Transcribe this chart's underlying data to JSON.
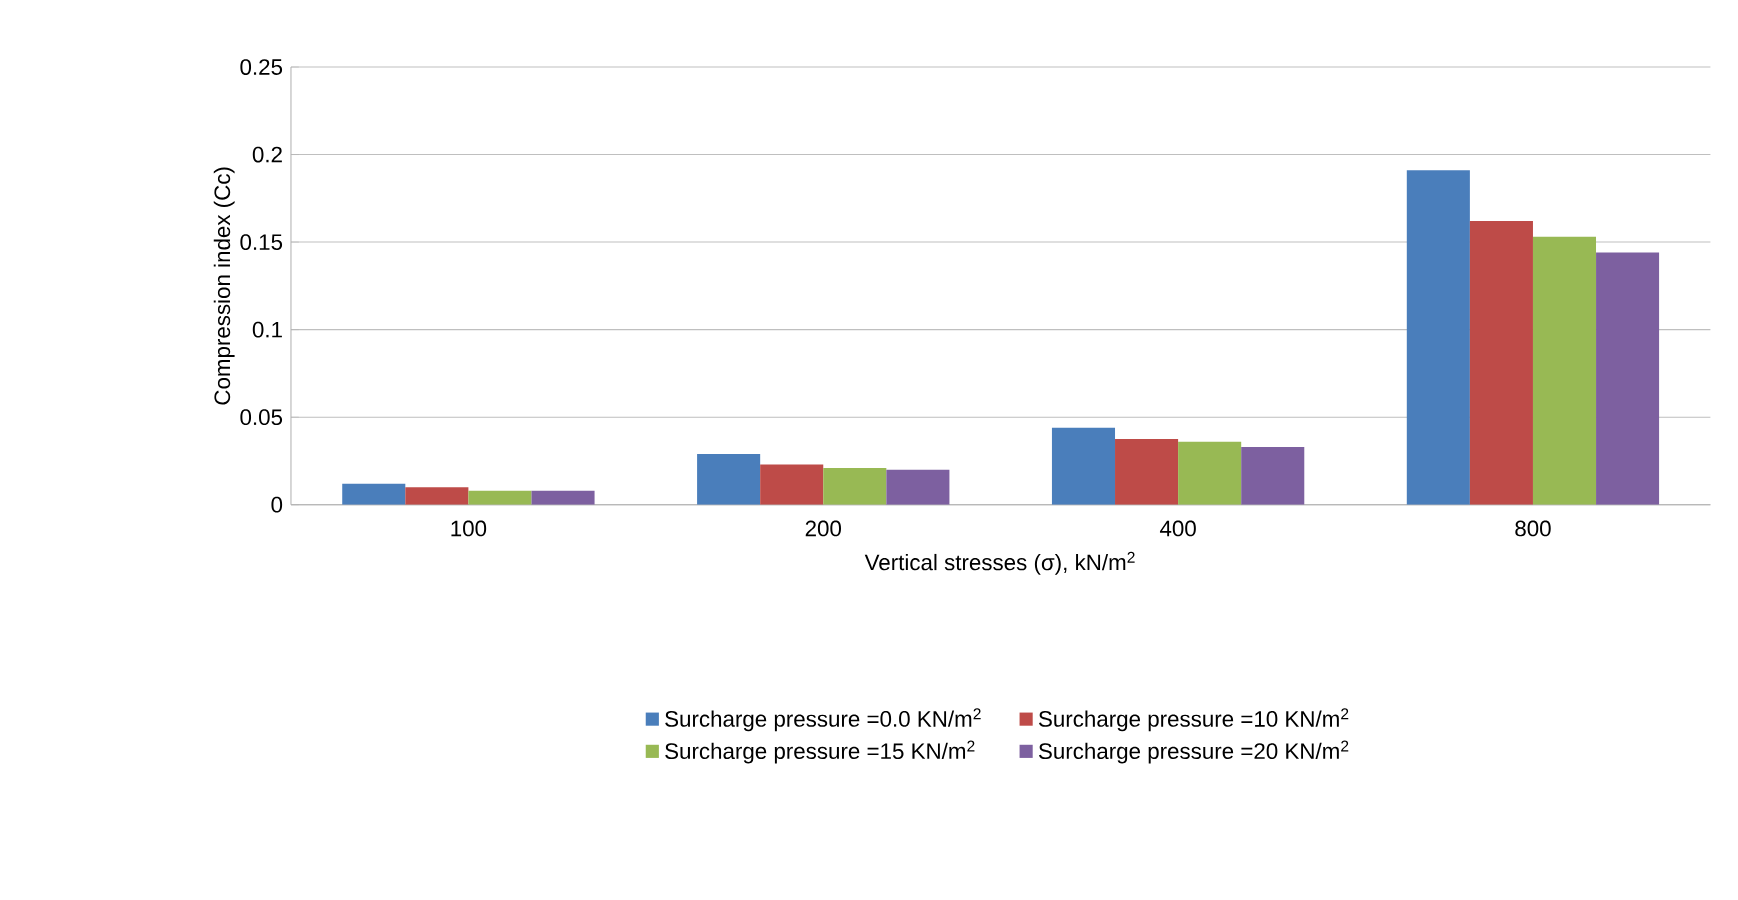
{
  "chart_data": {
    "type": "bar",
    "xlabel": "Vertical stresses (σ), kN/m$^{2}$",
    "ylabel": "Compression index (Cc)",
    "categories": [
      "100",
      "200",
      "400",
      "800"
    ],
    "series": [
      {
        "name": "Surcharge pressure =0.0 KN/m$^{2}$",
        "color": "#4a7ebb",
        "values": [
          0.012,
          0.029,
          0.044,
          0.191
        ]
      },
      {
        "name": "Surcharge pressure =10 KN/m$^{2}$",
        "color": "#be4b48",
        "values": [
          0.01,
          0.023,
          0.0375,
          0.162
        ]
      },
      {
        "name": "Surcharge pressure =15 KN/m$^{2}$",
        "color": "#98b954",
        "values": [
          0.008,
          0.021,
          0.036,
          0.153
        ]
      },
      {
        "name": "Surcharge pressure =20 KN/m$^{2}$",
        "color": "#7d60a0",
        "values": [
          0.008,
          0.02,
          0.033,
          0.144
        ]
      }
    ],
    "ylim": [
      0,
      0.25
    ],
    "yticks": [
      0,
      0.05,
      0.1,
      0.15,
      0.2,
      0.25
    ],
    "grid": "y",
    "legend": "bottom"
  }
}
